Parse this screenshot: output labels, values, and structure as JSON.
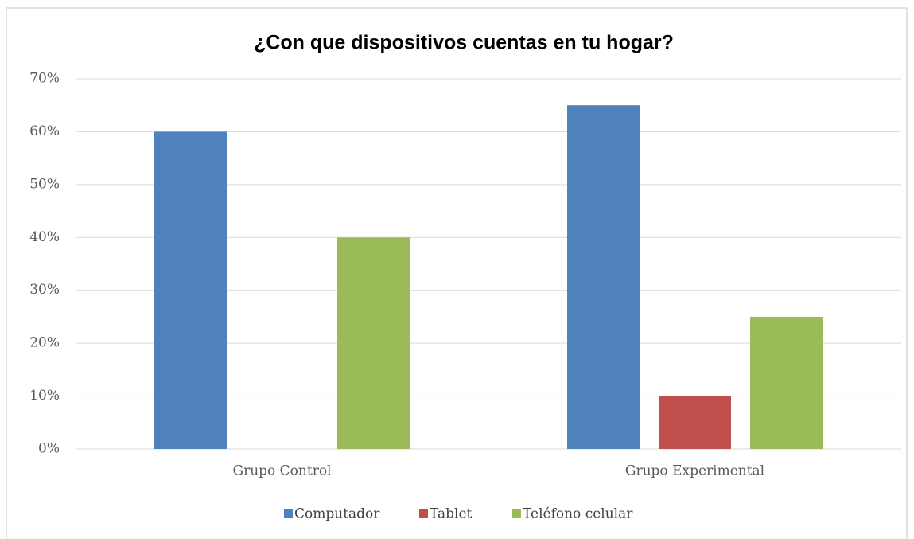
{
  "chart_data": {
    "type": "bar",
    "title": "¿Con que dispositivos cuentas en tu hogar?",
    "categories": [
      "Grupo Control",
      "Grupo Experimental"
    ],
    "series": [
      {
        "name": "Computador",
        "color": "#4f81bd",
        "values": [
          60,
          65
        ]
      },
      {
        "name": "Tablet",
        "color": "#c0504d",
        "values": [
          0,
          10
        ]
      },
      {
        "name": "Teléfono celular",
        "color": "#9bbb59",
        "values": [
          40,
          25
        ]
      }
    ],
    "ylim": [
      0,
      70
    ],
    "yticks": [
      {
        "value": 0,
        "label": "0%"
      },
      {
        "value": 10,
        "label": "10%"
      },
      {
        "value": 20,
        "label": "20%"
      },
      {
        "value": 30,
        "label": "30%"
      },
      {
        "value": 40,
        "label": "40%"
      },
      {
        "value": 50,
        "label": "50%"
      },
      {
        "value": 60,
        "label": "60%"
      },
      {
        "value": 70,
        "label": "70%"
      }
    ],
    "grid": true,
    "legend": "bottom"
  }
}
